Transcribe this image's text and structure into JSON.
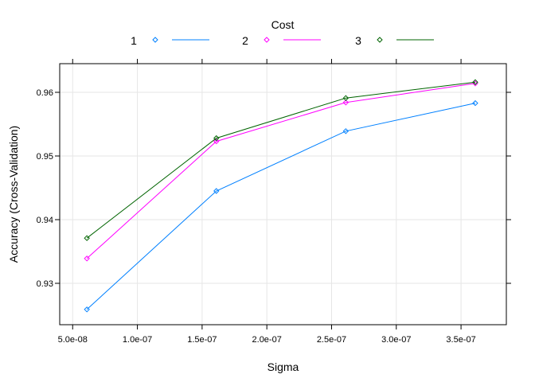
{
  "chart_data": {
    "type": "line",
    "xlabel": "Sigma",
    "ylabel": "Accuracy (Cross-Validation)",
    "legend_title": "Cost",
    "legend_position": "top",
    "grid": true,
    "x": [
      6.1e-08,
      1.61e-07,
      2.61e-07,
      3.61e-07
    ],
    "xlim": [
      4e-08,
      3.85e-07
    ],
    "ylim": [
      0.9235,
      0.9645
    ],
    "x_ticks": [
      5e-08,
      1e-07,
      1.5e-07,
      2e-07,
      2.5e-07,
      3e-07,
      3.5e-07
    ],
    "x_tick_labels": [
      "5.0e-08",
      "1.0e-07",
      "1.5e-07",
      "2.0e-07",
      "2.5e-07",
      "3.0e-07",
      "3.5e-07"
    ],
    "y_ticks": [
      0.93,
      0.94,
      0.95,
      0.96
    ],
    "y_tick_labels": [
      "0.93",
      "0.94",
      "0.95",
      "0.96"
    ],
    "series": [
      {
        "name": "1",
        "color": "#0080ff",
        "values": [
          0.9259,
          0.9445,
          0.9539,
          0.9583
        ]
      },
      {
        "name": "2",
        "color": "#ff00ff",
        "values": [
          0.9339,
          0.9523,
          0.9584,
          0.9614
        ]
      },
      {
        "name": "3",
        "color": "#006400",
        "values": [
          0.9371,
          0.9528,
          0.9591,
          0.9616
        ]
      }
    ]
  }
}
